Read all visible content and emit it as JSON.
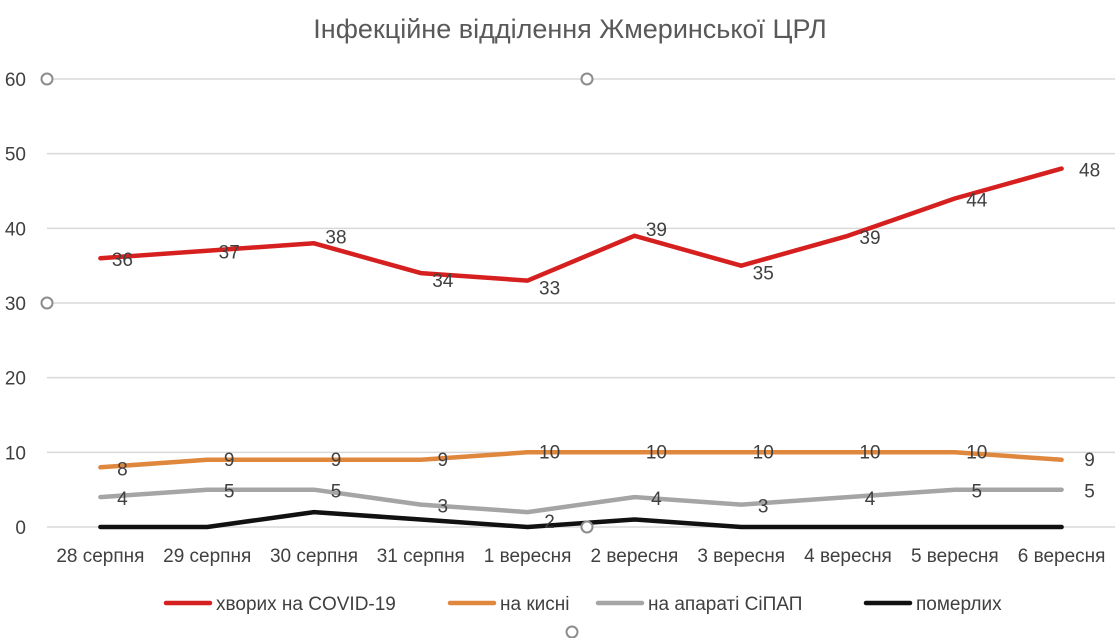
{
  "chart_data": {
    "type": "line",
    "title": "Інфекційне відділення Жмеринської ЦРЛ",
    "xlabel": "",
    "ylabel": "",
    "ylim": [
      0,
      60
    ],
    "yticks": [
      "0",
      "10",
      "20",
      "30",
      "40",
      "50",
      "60"
    ],
    "grid": true,
    "legend_position": "bottom",
    "categories": [
      "28 серпня",
      "29 серпня",
      "30 серпня",
      "31 серпня",
      "1 вересня",
      "2 вересня",
      "3 вересня",
      "4 вересня",
      "5 вересня",
      "6 вересня"
    ],
    "series": [
      {
        "name": "хворих на COVID-19",
        "color": "#d62020",
        "values": [
          36,
          37,
          38,
          34,
          33,
          39,
          35,
          39,
          44,
          48
        ]
      },
      {
        "name": "на кисні",
        "color": "#e0873e",
        "values": [
          8,
          9,
          9,
          9,
          10,
          10,
          10,
          10,
          10,
          9
        ]
      },
      {
        "name": "на апараті СіПАП",
        "color": "#a5a5a5",
        "values": [
          4,
          5,
          5,
          3,
          2,
          4,
          3,
          4,
          5,
          5
        ]
      },
      {
        "name": "померлих",
        "color": "#111111",
        "values": [
          0,
          0,
          2,
          1,
          0,
          1,
          0,
          0,
          0,
          0
        ]
      }
    ]
  }
}
